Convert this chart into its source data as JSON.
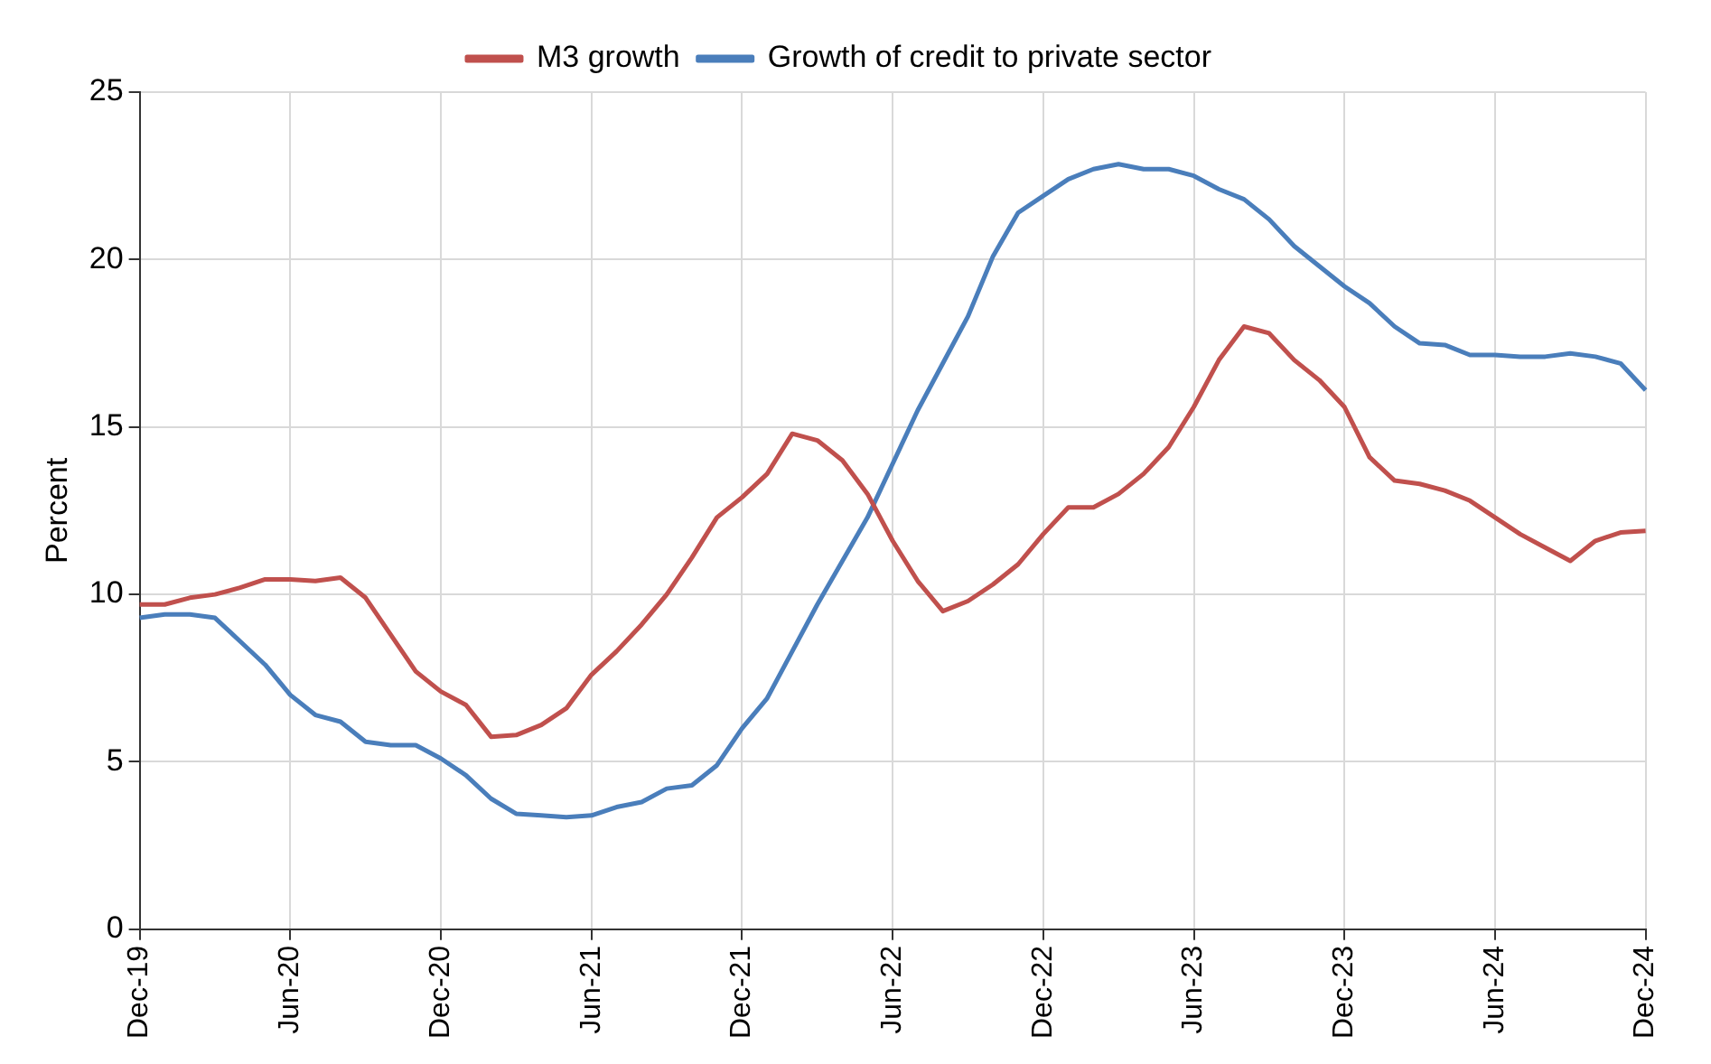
{
  "chart_data": {
    "type": "line",
    "ylabel": "Percent",
    "categories": [
      "Dec-19",
      null,
      null,
      null,
      null,
      null,
      "Jun-20",
      null,
      null,
      null,
      null,
      null,
      "Dec-20",
      null,
      null,
      null,
      null,
      null,
      "Jun-21",
      null,
      null,
      null,
      null,
      null,
      "Dec-21",
      null,
      null,
      null,
      null,
      null,
      "Jun-22",
      null,
      null,
      null,
      null,
      null,
      "Dec-22",
      null,
      null,
      null,
      null,
      null,
      "Jun-23",
      null,
      null,
      null,
      null,
      null,
      "Dec-23",
      null,
      null,
      null,
      null,
      null,
      "Jun-24",
      null,
      null,
      null,
      null,
      null,
      "Dec-24"
    ],
    "series": [
      {
        "name": "M3 growth",
        "color": "#c0504d",
        "values": [
          9.7,
          9.7,
          9.9,
          10.0,
          10.2,
          10.45,
          10.45,
          10.4,
          10.5,
          9.9,
          8.8,
          7.7,
          7.1,
          6.7,
          5.75,
          5.8,
          6.1,
          6.6,
          7.6,
          8.3,
          9.1,
          10.0,
          11.1,
          12.3,
          12.9,
          13.6,
          14.8,
          14.6,
          14.0,
          13.0,
          11.6,
          10.4,
          9.5,
          9.8,
          10.3,
          10.9,
          11.8,
          12.6,
          12.6,
          13.0,
          13.6,
          14.4,
          15.6,
          17.0,
          18.0,
          17.8,
          17.0,
          16.4,
          15.6,
          14.1,
          13.4,
          13.3,
          13.1,
          12.8,
          12.3,
          11.8,
          11.4,
          11.0,
          11.6,
          11.85,
          11.9
        ]
      },
      {
        "name": "Growth of credit to private sector",
        "color": "#4a7ebb",
        "values": [
          9.3,
          9.4,
          9.4,
          9.3,
          8.6,
          7.9,
          7.0,
          6.4,
          6.2,
          5.6,
          5.5,
          5.5,
          5.1,
          4.6,
          3.9,
          3.45,
          3.4,
          3.35,
          3.4,
          3.65,
          3.8,
          4.2,
          4.3,
          4.9,
          6.0,
          6.9,
          8.3,
          9.7,
          11.0,
          12.3,
          13.9,
          15.5,
          16.9,
          18.3,
          20.1,
          21.4,
          21.9,
          22.4,
          22.7,
          22.85,
          22.7,
          22.7,
          22.5,
          22.1,
          21.8,
          21.2,
          20.4,
          19.8,
          19.2,
          18.7,
          18.0,
          17.5,
          17.45,
          17.15,
          17.15,
          17.1,
          17.1,
          17.2,
          17.1,
          16.9,
          16.1
        ]
      }
    ],
    "ylim": [
      0,
      25
    ],
    "yticks": [
      0,
      5,
      10,
      15,
      20,
      25
    ],
    "grid": true,
    "legend": "top",
    "marker": "none",
    "line_style": "solid"
  }
}
